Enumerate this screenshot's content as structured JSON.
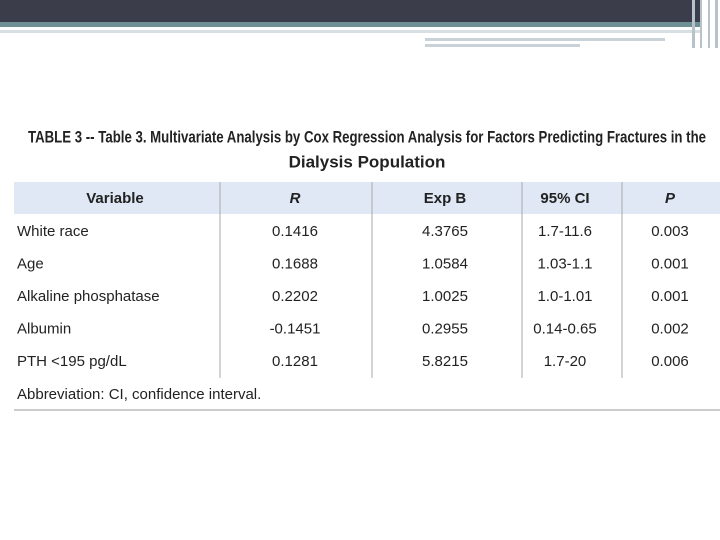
{
  "title": {
    "line1": "TABLE 3 -- Table 3. Multivariate Analysis by Cox Regression Analysis for Factors Predicting Fractures in the",
    "line2": "Dialysis Population"
  },
  "table": {
    "header": [
      "Variable",
      "R",
      "Exp B",
      "95% CI",
      "P"
    ],
    "rows": [
      [
        "White race",
        "0.1416",
        "4.3765",
        "1.7-11.6",
        "0.003"
      ],
      [
        "Age",
        "0.1688",
        "1.0584",
        "1.03-1.1",
        "0.001"
      ],
      [
        "Alkaline phosphatase",
        "0.2202",
        "1.0025",
        "1.0-1.01",
        "0.001"
      ],
      [
        "Albumin",
        "-0.1451",
        "0.2955",
        "0.14-0.65",
        "0.002"
      ],
      [
        "PTH <195 pg/dL",
        "0.1281",
        "5.8215",
        "1.7-20",
        "0.006"
      ]
    ],
    "footnote": "Abbreviation: CI, confidence interval."
  }
}
